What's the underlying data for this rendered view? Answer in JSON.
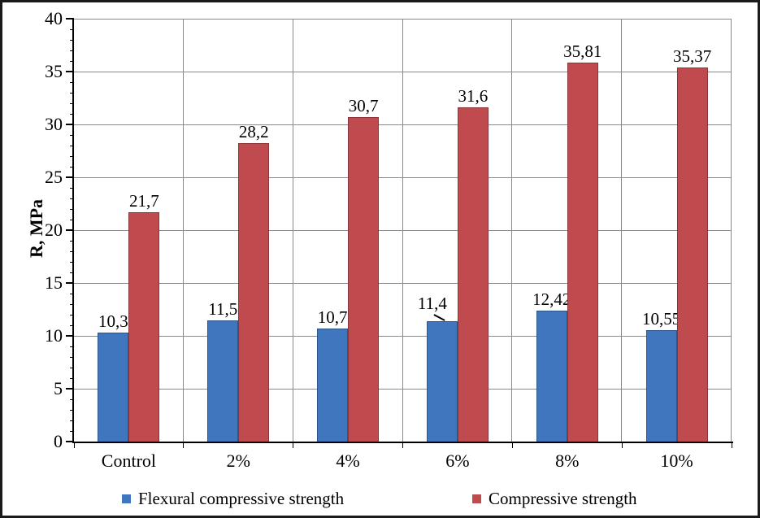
{
  "chart_data": {
    "type": "bar",
    "title": "",
    "categories": [
      "Control",
      "2%",
      "4%",
      "6%",
      "8%",
      "10%"
    ],
    "series": [
      {
        "name": "Flexural compressive strength",
        "color": "#4076BE",
        "values": [
          10.3,
          11.5,
          10.7,
          11.4,
          12.42,
          10.55
        ],
        "labels": [
          "10,3",
          "11,5",
          "10,7",
          "11,4",
          "12,42",
          "10,55"
        ],
        "label_leader": [
          false,
          false,
          false,
          true,
          false,
          false
        ]
      },
      {
        "name": "Compressive strength",
        "color": "#C04B4E",
        "values": [
          21.7,
          28.2,
          30.7,
          31.6,
          35.81,
          35.37
        ],
        "labels": [
          "21,7",
          "28,2",
          "30,7",
          "31,6",
          "35,81",
          "35,37"
        ],
        "label_leader": [
          false,
          false,
          false,
          false,
          false,
          false
        ]
      }
    ],
    "xlabel": "",
    "ylabel": "R, MPa",
    "ylim": [
      0,
      40
    ],
    "ytick_interval": 5,
    "ytick_labels": [
      "0",
      "5",
      "10",
      "15",
      "20",
      "25",
      "30",
      "35",
      "40"
    ],
    "minor_tick_interval": 1,
    "grid": true,
    "gridline_color": "#8a8a8a",
    "axis_color": "#000000",
    "decimal_separator": ",",
    "legend_position": "bottom"
  }
}
